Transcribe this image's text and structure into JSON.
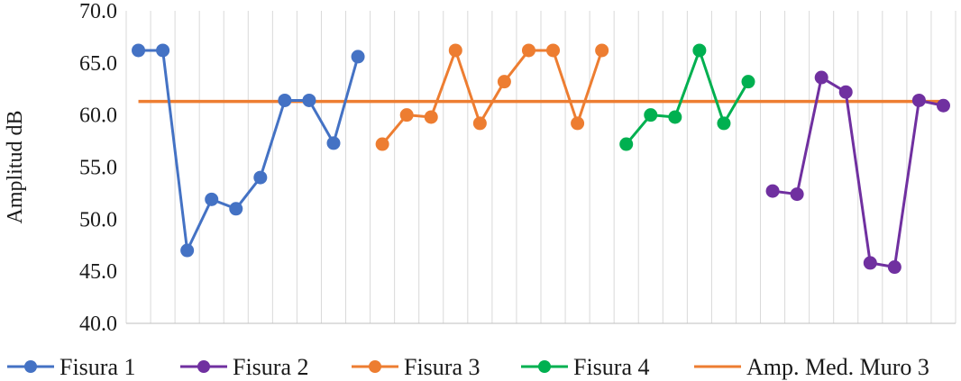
{
  "chart_data": {
    "type": "line",
    "title": "",
    "xlabel": "",
    "ylabel": "Amplitud dB",
    "ylim": [
      40,
      70
    ],
    "y_ticks": [
      "40.0",
      "45.0",
      "50.0",
      "55.0",
      "60.0",
      "65.0",
      "70.0"
    ],
    "x_count": 34,
    "grid": "vertical category dividers",
    "legend_position": "bottom",
    "reference_line": {
      "name": "Amp. Med. Muro 3",
      "value": 61.3,
      "color": "#ED7D31"
    },
    "series": [
      {
        "name": "Fisura 1",
        "color": "#4472C4",
        "x": [
          1,
          2,
          3,
          4,
          5,
          6,
          7,
          8,
          9,
          10
        ],
        "values": [
          66.2,
          66.2,
          47.0,
          51.9,
          51.0,
          54.0,
          61.4,
          61.4,
          57.3,
          65.6
        ]
      },
      {
        "name": "Fisura 2",
        "color": "#7030A0",
        "x": [
          27,
          28,
          29,
          30,
          31,
          32,
          33,
          34
        ],
        "values": [
          52.7,
          52.4,
          63.6,
          62.2,
          45.8,
          45.4,
          61.4,
          60.9
        ]
      },
      {
        "name": "Fisura 3",
        "color": "#ED7D31",
        "x": [
          11,
          12,
          13,
          14,
          15,
          16,
          17,
          18,
          19,
          20
        ],
        "values": [
          57.2,
          60.0,
          59.8,
          66.2,
          59.2,
          63.2,
          66.2,
          66.2,
          59.2,
          66.2
        ]
      },
      {
        "name": "Fisura 4",
        "color": "#00B050",
        "x": [
          21,
          22,
          23,
          24,
          25,
          26
        ],
        "values": [
          57.2,
          60.0,
          59.8,
          66.2,
          59.2,
          63.2
        ]
      }
    ]
  }
}
